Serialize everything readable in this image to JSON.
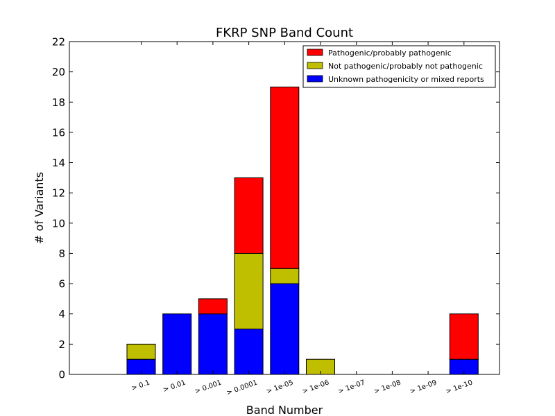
{
  "chart_data": {
    "type": "bar",
    "stacked": true,
    "title": "FKRP SNP Band Count",
    "xlabel": "Band Number",
    "ylabel": "# of Variants",
    "ylim": [
      0,
      22
    ],
    "yticks": [
      0,
      2,
      4,
      6,
      8,
      10,
      12,
      14,
      16,
      18,
      20,
      22
    ],
    "grid": false,
    "legend_position": "top-right",
    "categories": [
      "> 0.1",
      "> 0.01",
      "> 0.001",
      "> 0.0001",
      "> 1e-05",
      "> 1e-06",
      "> 1e-07",
      "> 1e-08",
      "> 1e-09",
      "> 1e-10"
    ],
    "series": [
      {
        "name": "Unknown pathogenicity or mixed reports",
        "color": "#0000ff",
        "values": [
          1,
          4,
          4,
          3,
          6,
          0,
          0,
          0,
          0,
          1
        ]
      },
      {
        "name": "Not pathogenic/probably not pathogenic",
        "color": "#bfbf00",
        "values": [
          1,
          0,
          0,
          5,
          1,
          1,
          0,
          0,
          0,
          0
        ]
      },
      {
        "name": "Pathogenic/probably pathogenic",
        "color": "#ff0000",
        "values": [
          0,
          0,
          1,
          5,
          12,
          0,
          0,
          0,
          0,
          3
        ]
      }
    ],
    "legend_order": [
      2,
      1,
      0
    ]
  }
}
